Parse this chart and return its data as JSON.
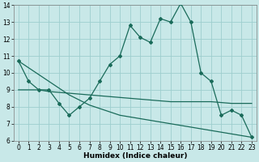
{
  "background_color": "#c8e8e8",
  "grid_color": "#9ecece",
  "line_color": "#1a6b5a",
  "xlabel": "Humidex (Indice chaleur)",
  "x": [
    0,
    1,
    2,
    3,
    4,
    5,
    6,
    7,
    8,
    9,
    10,
    11,
    12,
    13,
    14,
    15,
    16,
    17,
    18,
    19,
    20,
    21,
    22,
    23
  ],
  "main_line": [
    10.7,
    9.5,
    9.0,
    9.0,
    8.2,
    7.5,
    8.0,
    8.5,
    9.5,
    10.5,
    11.0,
    12.8,
    12.1,
    11.8,
    13.2,
    13.0,
    14.1,
    13.0,
    10.0,
    9.5,
    7.5,
    7.8,
    7.5,
    6.2
  ],
  "flat_line1": [
    9.0,
    9.0,
    9.0,
    8.9,
    8.85,
    8.8,
    8.75,
    8.7,
    8.65,
    8.6,
    8.55,
    8.5,
    8.45,
    8.4,
    8.35,
    8.3,
    8.3,
    8.3,
    8.3,
    8.3,
    8.25,
    8.2,
    8.2,
    8.2
  ],
  "diag_line": [
    10.7,
    10.3,
    9.9,
    9.5,
    9.1,
    8.7,
    8.4,
    8.1,
    7.9,
    7.7,
    7.5,
    7.4,
    7.3,
    7.2,
    7.1,
    7.0,
    6.9,
    6.8,
    6.7,
    6.6,
    6.5,
    6.4,
    6.3,
    6.2
  ],
  "ylim": [
    6,
    14
  ],
  "yticks": [
    6,
    7,
    8,
    9,
    10,
    11,
    12,
    13,
    14
  ],
  "xticks": [
    0,
    1,
    2,
    3,
    4,
    5,
    6,
    7,
    8,
    9,
    10,
    11,
    12,
    13,
    14,
    15,
    16,
    17,
    18,
    19,
    20,
    21,
    22,
    23
  ],
  "tick_fontsize": 5.5,
  "xlabel_fontsize": 6.5
}
